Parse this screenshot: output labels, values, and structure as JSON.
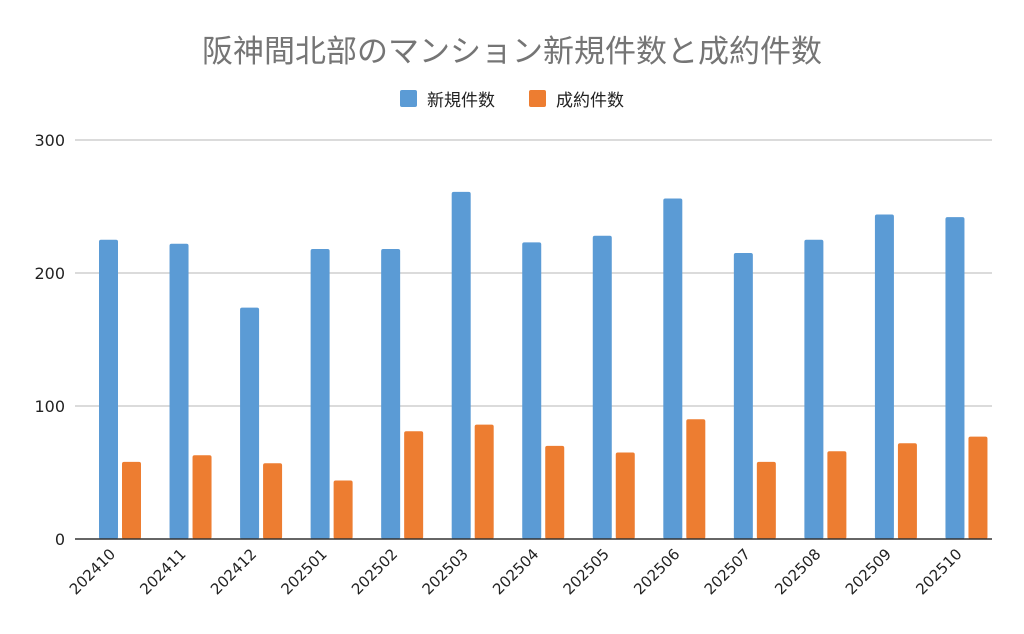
{
  "chart_data": {
    "type": "bar",
    "title": "阪神間北部のマンション新規件数と成約件数",
    "xlabel": "",
    "ylabel": "",
    "ylim": [
      0,
      300
    ],
    "yticks": [
      0,
      100,
      200,
      300
    ],
    "grid": true,
    "legend_position": "top",
    "categories": [
      "202410",
      "202411",
      "202412",
      "202501",
      "202502",
      "202503",
      "202504",
      "202505",
      "202506",
      "202507",
      "202508",
      "202509",
      "202510"
    ],
    "series": [
      {
        "name": "新規件数",
        "color": "#5b9bd5",
        "values": [
          225,
          222,
          174,
          218,
          218,
          261,
          223,
          228,
          256,
          215,
          225,
          244,
          242
        ]
      },
      {
        "name": "成約件数",
        "color": "#ed7d31",
        "values": [
          58,
          63,
          57,
          44,
          81,
          86,
          70,
          65,
          90,
          58,
          66,
          72,
          77
        ]
      }
    ]
  }
}
